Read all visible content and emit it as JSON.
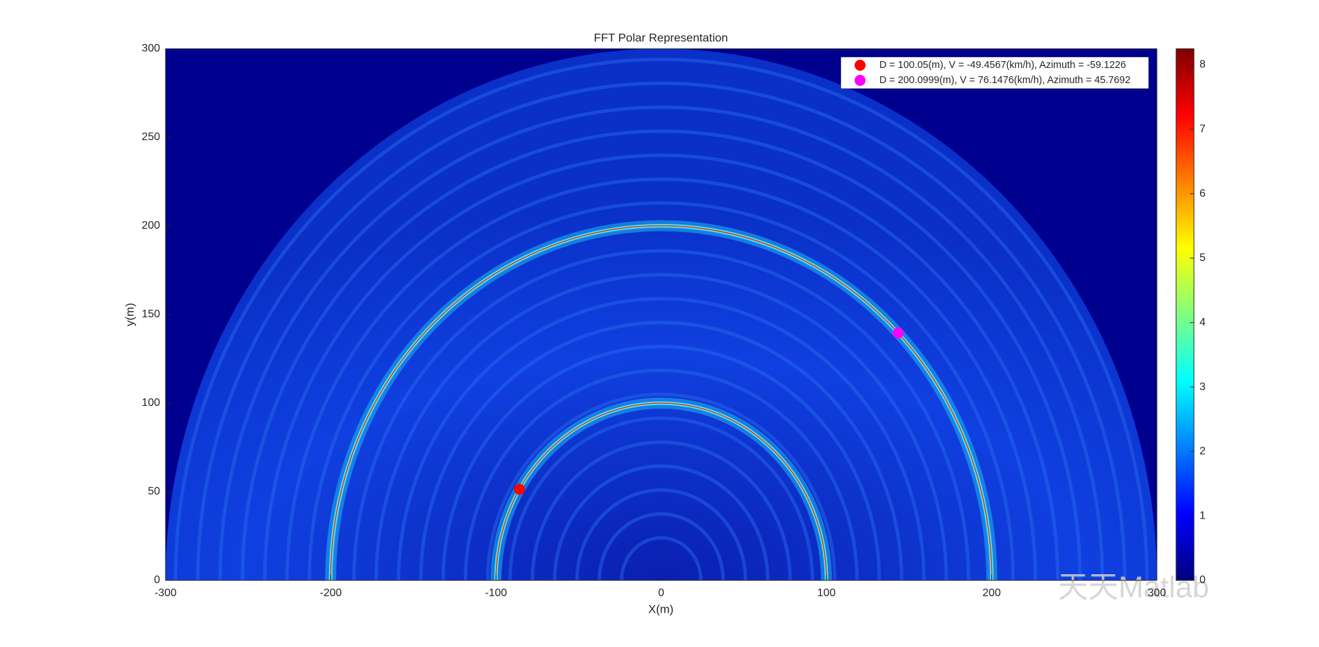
{
  "chart_data": {
    "type": "scatter",
    "title": "FFT Polar Representation",
    "xlabel": "X(m)",
    "ylabel": "y(m)",
    "xlim": [
      -300,
      300
    ],
    "ylim": [
      0,
      300
    ],
    "xticks": [
      -300,
      -200,
      -100,
      0,
      100,
      200,
      300
    ],
    "yticks": [
      0,
      50,
      100,
      150,
      200,
      250,
      300
    ],
    "series": [
      {
        "name": "D = 100.05(m), V = -49.4567(km/h), Azimuth = -59.1226",
        "color": "#ff0000",
        "x": [
          -85.8
        ],
        "y": [
          51.4
        ]
      },
      {
        "name": "D = 200.0999(m), V = 76.1476(km/h), Azimuth = 45.7692",
        "color": "#ff00ff",
        "x": [
          143.4
        ],
        "y": [
          139.6
        ]
      }
    ],
    "legend": "upper right",
    "colorbar": {
      "lim": [
        0,
        8.25
      ],
      "ticks": [
        0,
        1,
        2,
        3,
        4,
        5,
        6,
        7,
        8
      ]
    }
  },
  "watermark": "天天Matlab"
}
